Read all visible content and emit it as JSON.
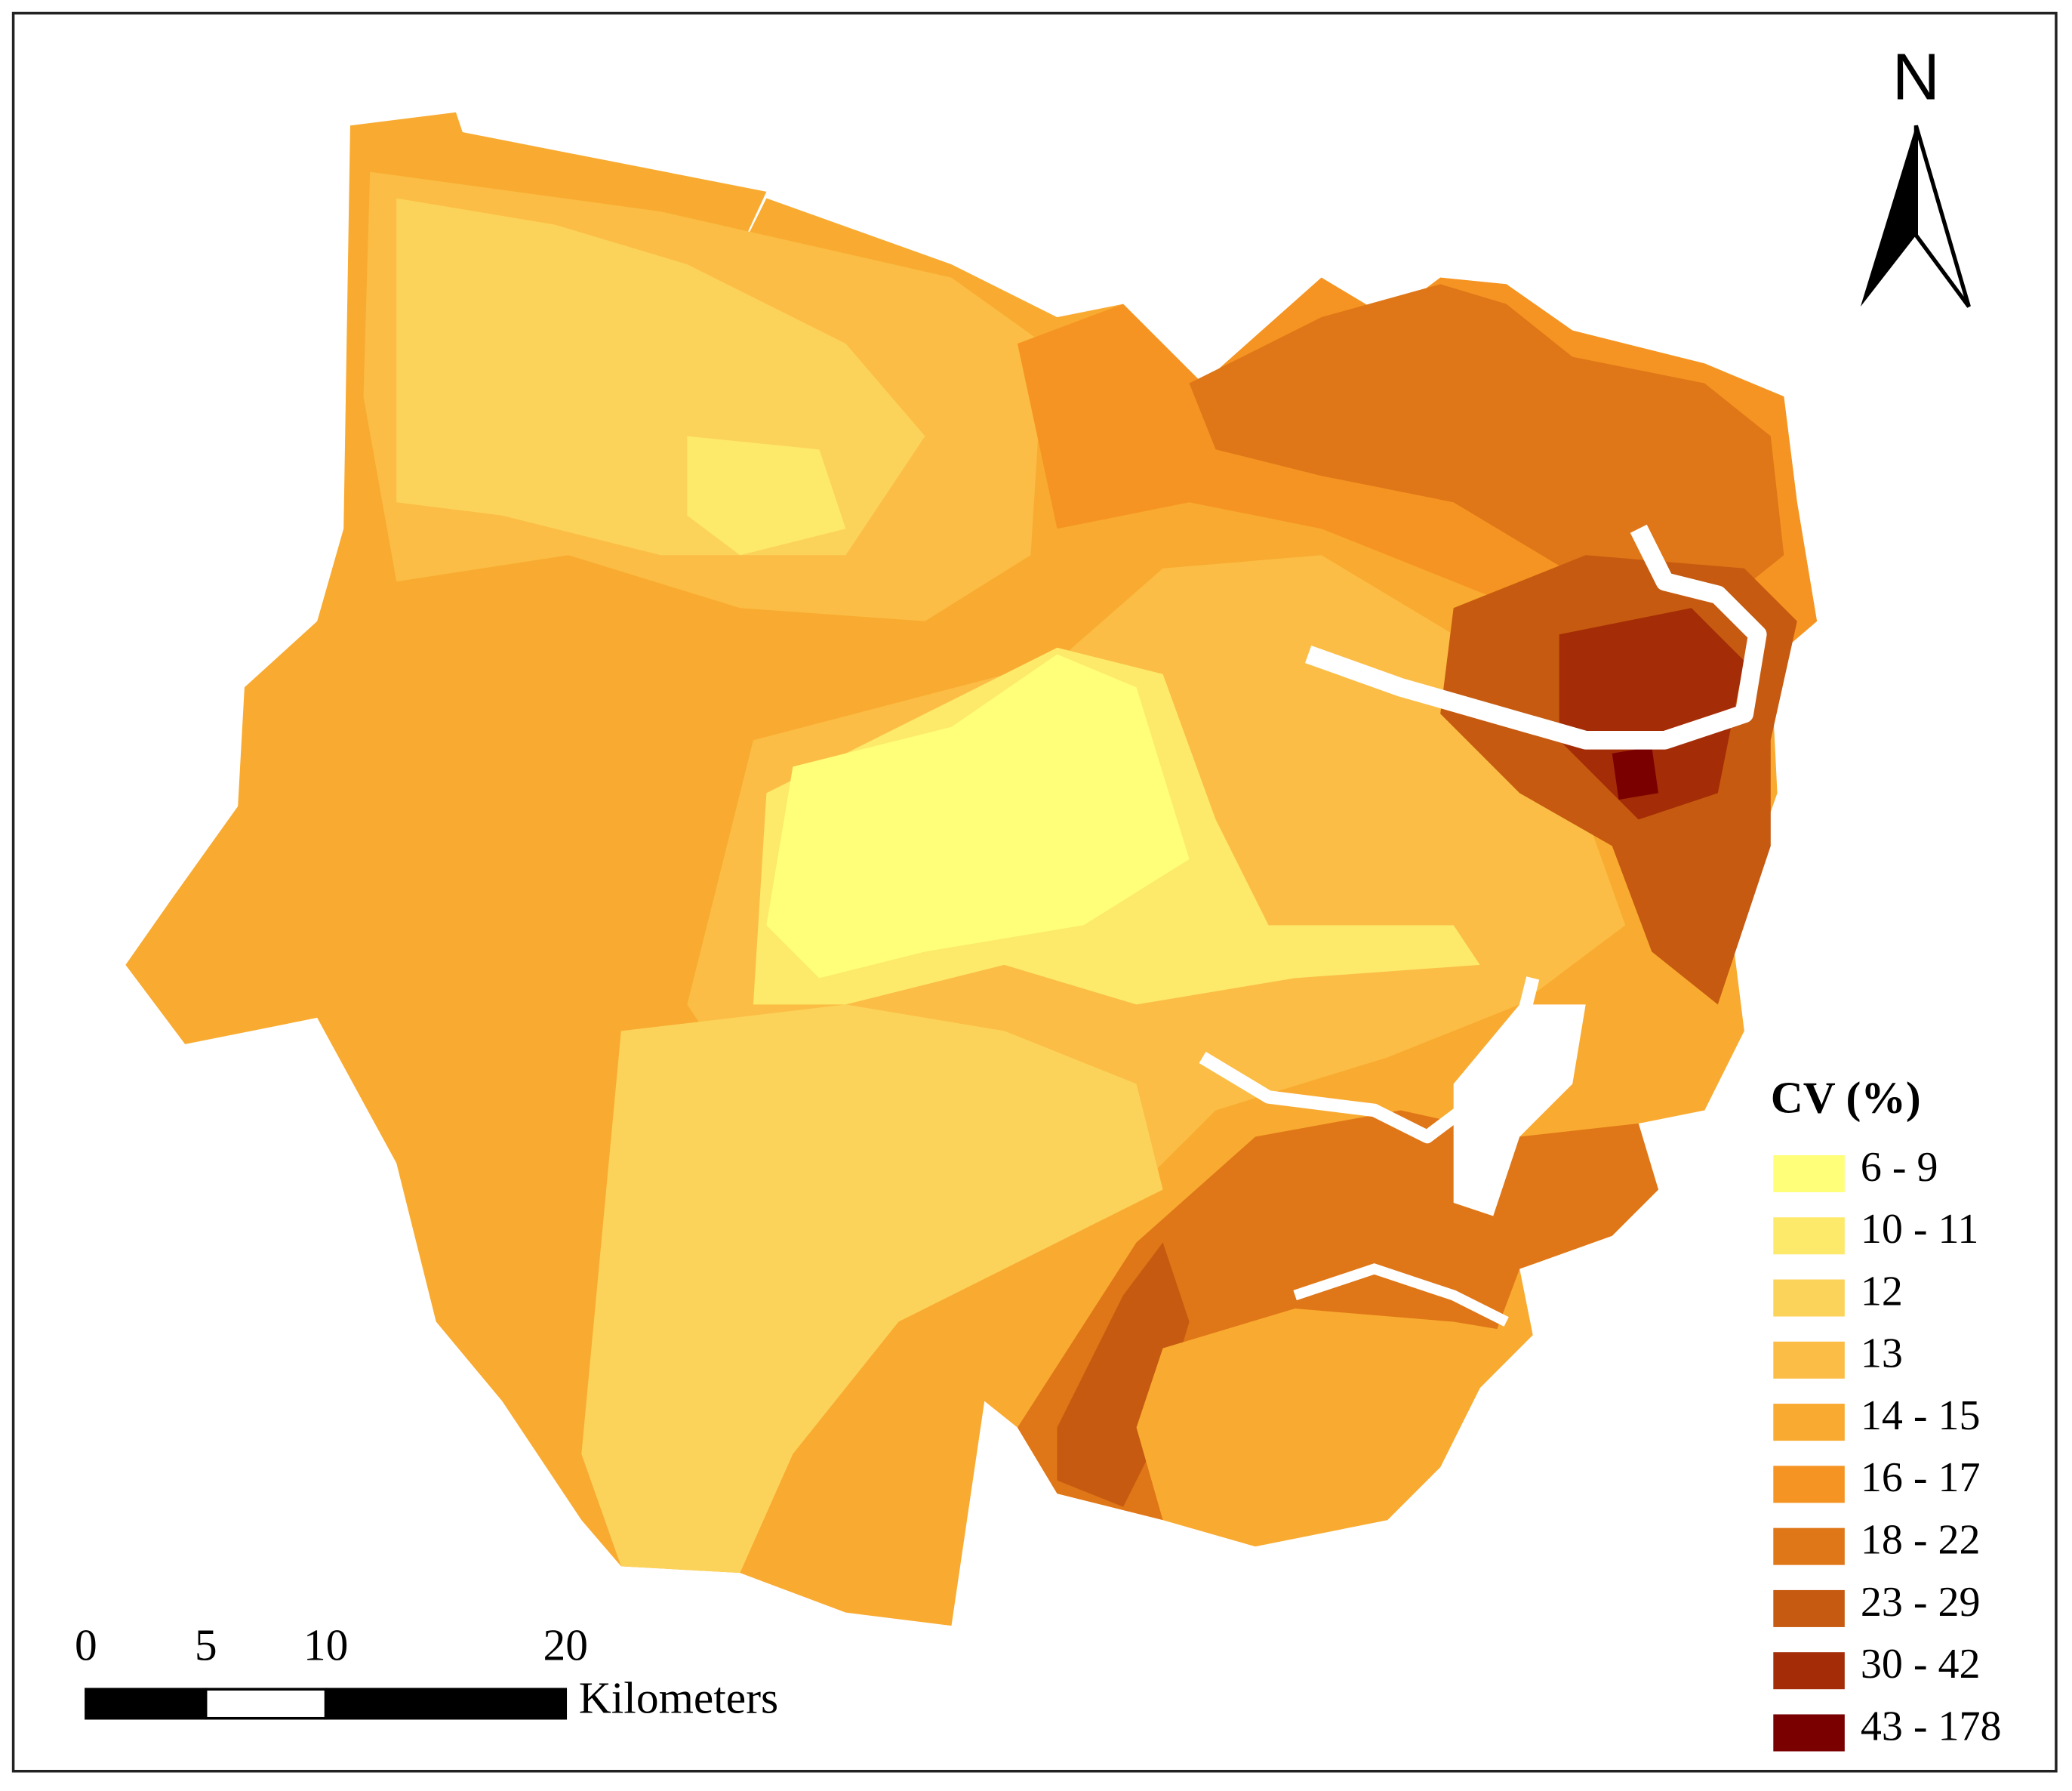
{
  "north_arrow": {
    "label": "N"
  },
  "legend": {
    "title": "CV (%)",
    "items": [
      {
        "label": "6 - 9",
        "color": "#ffff7a"
      },
      {
        "label": "10 - 11",
        "color": "#fde96a"
      },
      {
        "label": "12",
        "color": "#fcd35a"
      },
      {
        "label": "13",
        "color": "#fbbd45"
      },
      {
        "label": "14 - 15",
        "color": "#f9aa30"
      },
      {
        "label": "16 - 17",
        "color": "#f59422"
      },
      {
        "label": "18 - 22",
        "color": "#df7617"
      },
      {
        "label": "23 - 29",
        "color": "#c65a10"
      },
      {
        "label": "30 - 42",
        "color": "#a42c06"
      },
      {
        "label": "43 - 178",
        "color": "#7a0000"
      }
    ]
  },
  "scale_bar": {
    "ticks": [
      0,
      5,
      10,
      20
    ],
    "unit": "Kilometers"
  }
}
